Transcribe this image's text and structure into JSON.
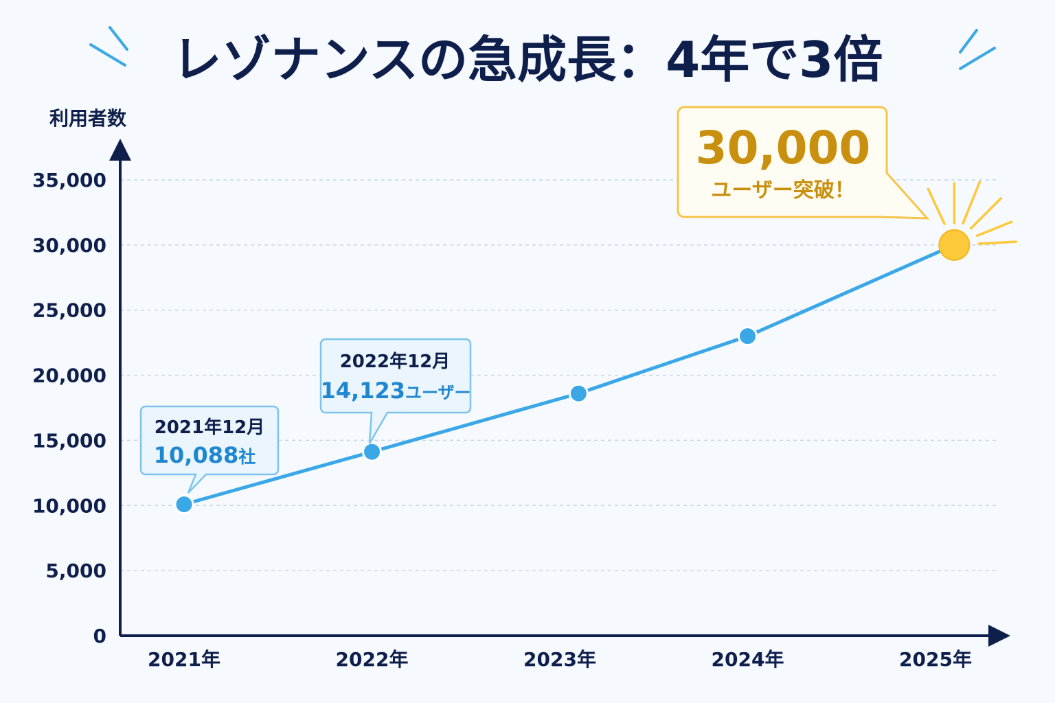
{
  "chart_data": {
    "type": "line",
    "title": "レゾナンスの急成長：4年で3倍",
    "ylabel": "利用者数",
    "xlabel": "",
    "ylim": [
      0,
      35000
    ],
    "yticks": [
      "0",
      "5,000",
      "10,000",
      "15,000",
      "20,000",
      "25,000",
      "30,000",
      "35,000"
    ],
    "ytick_values": [
      0,
      5000,
      10000,
      15000,
      20000,
      25000,
      30000,
      35000
    ],
    "categories": [
      "2021年",
      "2022年",
      "2023年",
      "2024年",
      "2025年"
    ],
    "x_positions": [
      2021,
      2022,
      2023,
      2024,
      2025
    ],
    "points": [
      {
        "x": 2021.0,
        "y": 10088
      },
      {
        "x": 2022.0,
        "y": 14123
      },
      {
        "x": 2023.1,
        "y": 18600
      },
      {
        "x": 2024.0,
        "y": 23000
      },
      {
        "x": 2025.1,
        "y": 30000
      }
    ],
    "grid": true,
    "colors": {
      "line": "#3aa7e6",
      "point": "#3aa7e6",
      "highlight": "#fbc93a",
      "axis": "#0f1f4b",
      "grid": "#c9d6e4",
      "title": "#0f1f4b",
      "callout_blue": "#1f87d0",
      "callout_gold": "#c8900e",
      "sparkle": "#3aa7e6"
    },
    "annotations": [
      {
        "date": "2021年12月",
        "value": "10,088",
        "unit": "社",
        "point_index": 0
      },
      {
        "date": "2022年12月",
        "value": "14,123",
        "unit": "ユーザー",
        "point_index": 1
      }
    ],
    "highlight": {
      "value": "30,000",
      "text": "ユーザー突破！",
      "point_index": 4
    }
  }
}
